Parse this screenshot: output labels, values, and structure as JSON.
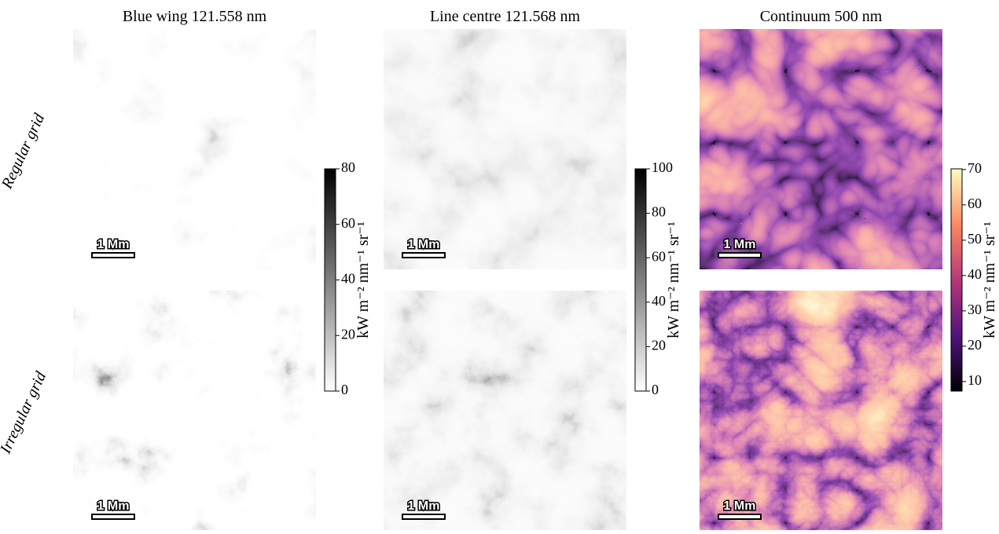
{
  "figure": {
    "row_labels": [
      "Regular grid",
      "Irregular grid"
    ],
    "scale_bar": "1 Mm",
    "panels": [
      {
        "title": "Blue wing 121.558 nm",
        "colorbar": {
          "label": "kW m⁻² nm⁻¹ sr⁻¹",
          "lim": [
            0,
            80
          ],
          "ticks": [
            0,
            20,
            40,
            60,
            80
          ],
          "colors": [
            "#000000",
            "#7f7f7f",
            "#ffffff"
          ]
        }
      },
      {
        "title": "Line centre 121.568 nm",
        "colorbar": {
          "label": "kW m⁻² nm⁻¹ sr⁻¹",
          "lim": [
            0,
            100
          ],
          "ticks": [
            0,
            20,
            40,
            60,
            80,
            100
          ],
          "colors": [
            "#000000",
            "#7f7f7f",
            "#ffffff"
          ]
        }
      },
      {
        "title": "Continuum 500 nm",
        "colorbar": {
          "label": "kW m⁻² nm⁻¹ sr⁻¹",
          "lim": [
            7.3,
            70.2
          ],
          "ticks": [
            10,
            20,
            30,
            40,
            50,
            60,
            70
          ],
          "colors": [
            "#fcfdbf",
            "#fc8961",
            "#b73779",
            "#51127c",
            "#000004"
          ]
        }
      }
    ]
  }
}
